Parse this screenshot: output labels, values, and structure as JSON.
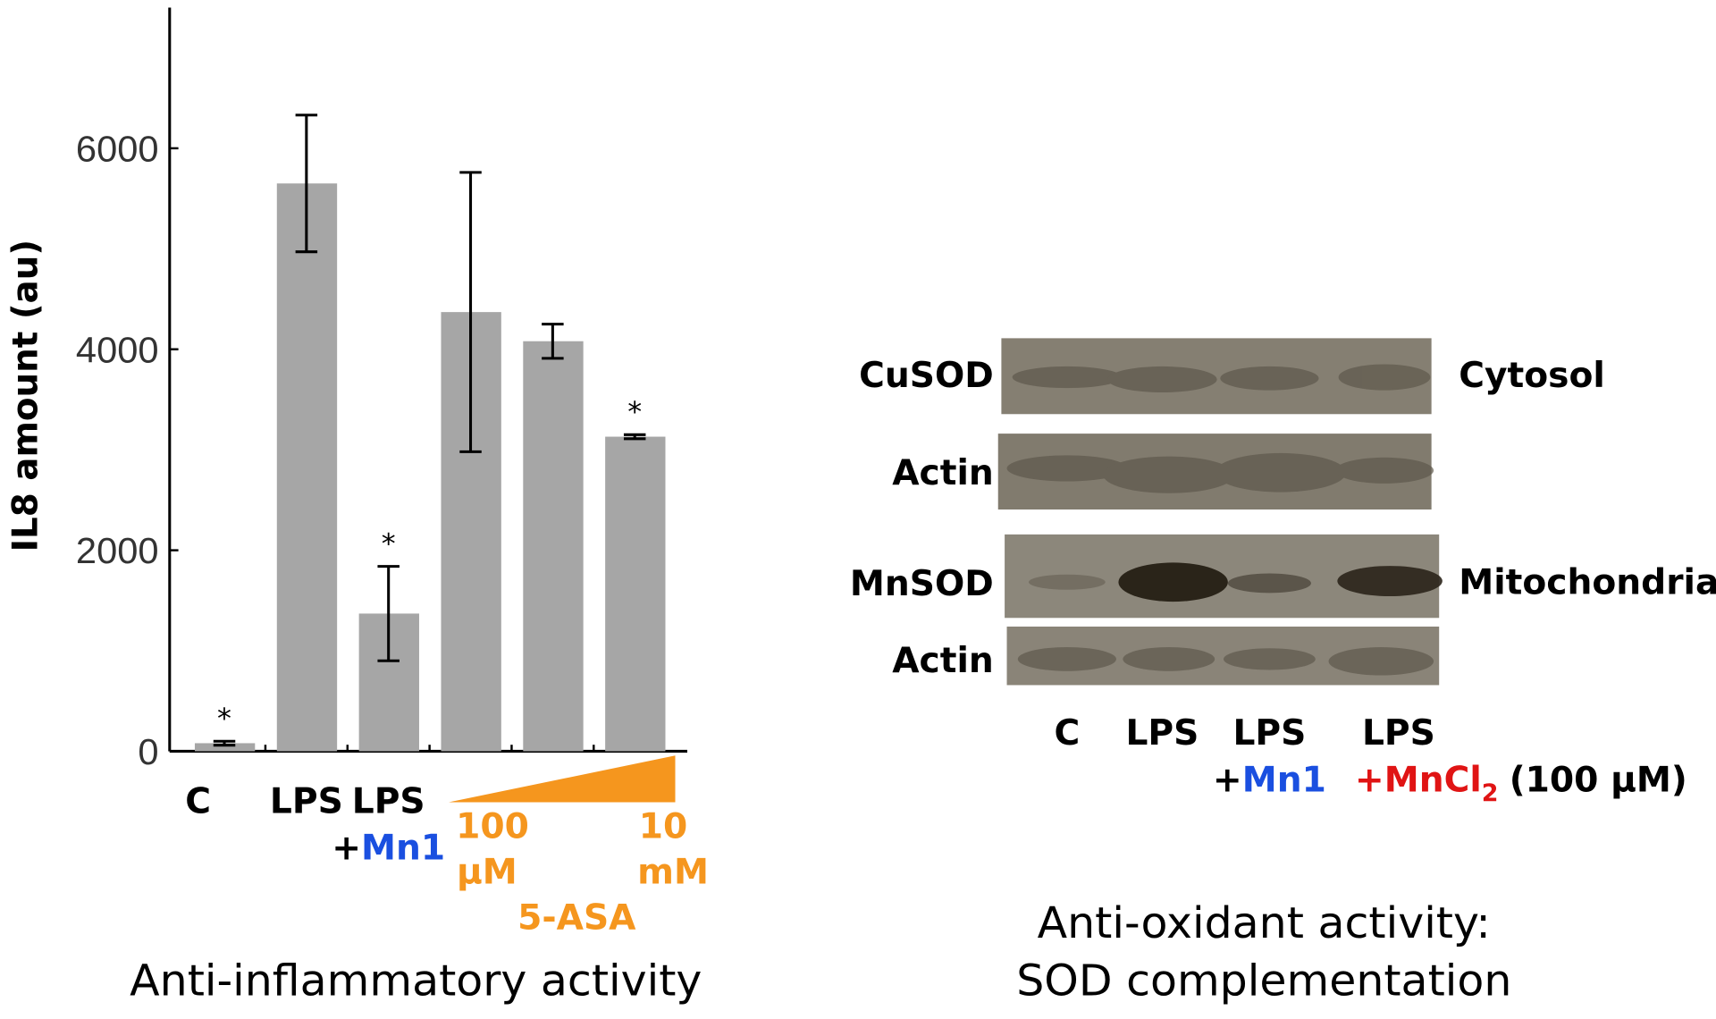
{
  "chart_data": {
    "type": "bar",
    "y_axis_label": "IL8 amount (au)",
    "categories": [
      "C",
      "LPS",
      "LPS",
      null,
      null,
      null
    ],
    "category_second_lines": [
      null,
      null,
      [
        "+",
        "Mn1"
      ],
      null,
      null,
      null
    ],
    "values": [
      80,
      5650,
      1370,
      4370,
      4080,
      3130
    ],
    "errors": [
      20,
      680,
      470,
      1390,
      170,
      20
    ],
    "significance": [
      "*",
      null,
      "*",
      null,
      null,
      "*"
    ],
    "color": "#a6a6a6",
    "ylim": [
      0,
      7400
    ],
    "yticks": [
      0,
      2000,
      4000,
      6000
    ],
    "grid": false,
    "gradient_labels": {
      "low": [
        "100",
        "µM"
      ],
      "high": [
        "10",
        "mM"
      ],
      "name": "5-ASA"
    },
    "caption": "Anti-inflammatory activity"
  },
  "blot": {
    "rows": [
      "CuSOD",
      "Actin",
      "MnSOD",
      "Actin"
    ],
    "compartments": [
      "Cytosol",
      "Mitochondria"
    ],
    "lanes": [
      {
        "line1": "C"
      },
      {
        "line1": "LPS"
      },
      {
        "line1": "LPS",
        "plus": "+",
        "agent": "Mn1"
      },
      {
        "line1": "LPS",
        "agent": "+MnCl",
        "subscript": "2",
        "concentration": "(100 µM)"
      }
    ],
    "caption": [
      "Anti-oxidant activity:",
      "SOD complementation"
    ]
  }
}
